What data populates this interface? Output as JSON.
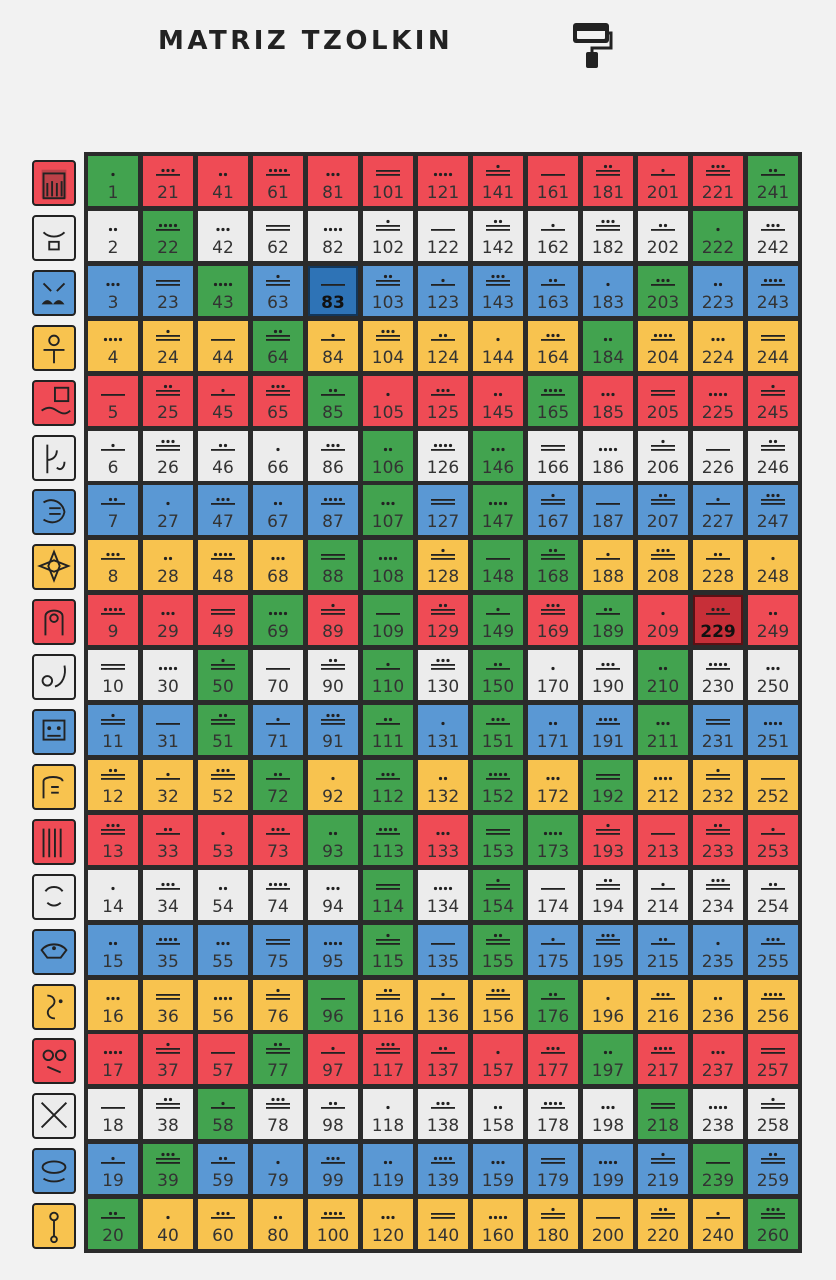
{
  "header": {
    "title": "MATRIZ TZOLKIN",
    "paint_icon": "paint-roller-icon"
  },
  "colors": {
    "red": "#ef4b55",
    "white": "#ececec",
    "blue": "#5a98d4",
    "yellow": "#f8c34f",
    "green": "#42a34f",
    "highlight_blue": "#2e73b6",
    "highlight_red": "#c72f38"
  },
  "glyphs": [
    {
      "name": "dragon-glyph-icon",
      "color": "red"
    },
    {
      "name": "wind-glyph-icon",
      "color": "white"
    },
    {
      "name": "night-glyph-icon",
      "color": "blue"
    },
    {
      "name": "seed-glyph-icon",
      "color": "yellow"
    },
    {
      "name": "serpent-glyph-icon",
      "color": "red"
    },
    {
      "name": "worldbridger-glyph-icon",
      "color": "white"
    },
    {
      "name": "hand-glyph-icon",
      "color": "blue"
    },
    {
      "name": "star-glyph-icon",
      "color": "yellow"
    },
    {
      "name": "moon-glyph-icon",
      "color": "red"
    },
    {
      "name": "dog-glyph-icon",
      "color": "white"
    },
    {
      "name": "monkey-glyph-icon",
      "color": "blue"
    },
    {
      "name": "human-glyph-icon",
      "color": "yellow"
    },
    {
      "name": "skywalker-glyph-icon",
      "color": "red"
    },
    {
      "name": "wizard-glyph-icon",
      "color": "white"
    },
    {
      "name": "eagle-glyph-icon",
      "color": "blue"
    },
    {
      "name": "warrior-glyph-icon",
      "color": "yellow"
    },
    {
      "name": "earth-glyph-icon",
      "color": "red"
    },
    {
      "name": "mirror-glyph-icon",
      "color": "white"
    },
    {
      "name": "storm-glyph-icon",
      "color": "blue"
    },
    {
      "name": "sun-glyph-icon",
      "color": "yellow"
    }
  ],
  "matrix": {
    "rows": 20,
    "columns": 13,
    "portal_days": [
      1,
      20,
      22,
      39,
      43,
      50,
      51,
      58,
      64,
      69,
      72,
      77,
      85,
      88,
      93,
      96,
      106,
      107,
      108,
      109,
      110,
      111,
      112,
      113,
      114,
      115,
      146,
      147,
      148,
      149,
      150,
      151,
      152,
      153,
      154,
      155,
      165,
      168,
      173,
      176,
      184,
      189,
      192,
      197,
      203,
      210,
      211,
      218,
      222,
      239,
      241,
      260
    ],
    "highlighted_days": [
      83,
      229
    ]
  }
}
